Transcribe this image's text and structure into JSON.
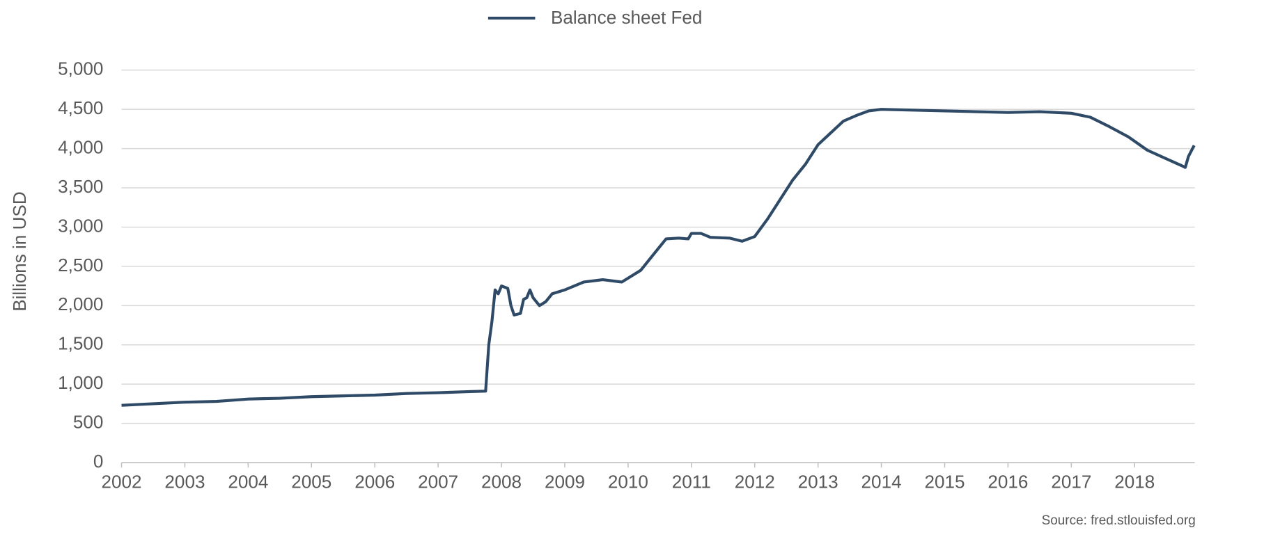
{
  "chart_data": {
    "type": "line",
    "series": [
      {
        "name": "Balance sheet Fed",
        "color": "#2e4a66",
        "x": [
          2002.0,
          2002.5,
          2003.0,
          2003.5,
          2004.0,
          2004.5,
          2005.0,
          2005.5,
          2006.0,
          2006.5,
          2007.0,
          2007.5,
          2007.75,
          2007.8,
          2007.85,
          2007.9,
          2007.95,
          2008.0,
          2008.1,
          2008.15,
          2008.2,
          2008.3,
          2008.35,
          2008.4,
          2008.45,
          2008.5,
          2008.6,
          2008.7,
          2008.8,
          2009.0,
          2009.3,
          2009.6,
          2009.9,
          2010.0,
          2010.2,
          2010.4,
          2010.6,
          2010.8,
          2010.95,
          2011.0,
          2011.15,
          2011.3,
          2011.6,
          2011.8,
          2012.0,
          2012.2,
          2012.4,
          2012.6,
          2012.8,
          2013.0,
          2013.2,
          2013.4,
          2013.6,
          2013.8,
          2014.0,
          2014.5,
          2015.0,
          2015.5,
          2016.0,
          2016.5,
          2017.0,
          2017.3,
          2017.6,
          2017.9,
          2018.2,
          2018.5,
          2018.75,
          2018.8,
          2018.85,
          2018.94
        ],
        "values": [
          730,
          750,
          770,
          780,
          810,
          820,
          840,
          850,
          860,
          880,
          890,
          905,
          910,
          1500,
          1800,
          2200,
          2150,
          2250,
          2220,
          2000,
          1880,
          1900,
          2080,
          2100,
          2200,
          2100,
          2000,
          2050,
          2150,
          2200,
          2300,
          2330,
          2300,
          2350,
          2450,
          2650,
          2850,
          2860,
          2850,
          2920,
          2920,
          2870,
          2860,
          2820,
          2880,
          3100,
          3350,
          3600,
          3800,
          4050,
          4200,
          4350,
          4420,
          4480,
          4500,
          4490,
          4480,
          4470,
          4460,
          4470,
          4450,
          4400,
          4280,
          4150,
          3980,
          3870,
          3780,
          3760,
          3900,
          4040
        ]
      }
    ],
    "y_label": "Billions in USD",
    "source": "Source: fred.stlouisfed.org",
    "xlim": [
      2002,
      2018.95
    ],
    "xticks": [
      2002,
      2003,
      2004,
      2005,
      2006,
      2007,
      2008,
      2009,
      2010,
      2011,
      2012,
      2013,
      2014,
      2015,
      2016,
      2017,
      2018
    ],
    "ylim": [
      0,
      5000
    ],
    "yticks": [
      0,
      500,
      {
        "value": 1000,
        "label": "1,000"
      },
      {
        "value": 1500,
        "label": "1,500"
      },
      {
        "value": 2000,
        "label": "2,000"
      },
      {
        "value": 2500,
        "label": "2,500"
      },
      {
        "value": 3000,
        "label": "3,000"
      },
      {
        "value": 3500,
        "label": "3,500"
      },
      {
        "value": 4000,
        "label": "4,000"
      },
      {
        "value": 4500,
        "label": "4,500"
      },
      {
        "value": 5000,
        "label": "5,000"
      }
    ],
    "grid": true,
    "legend": "top"
  }
}
